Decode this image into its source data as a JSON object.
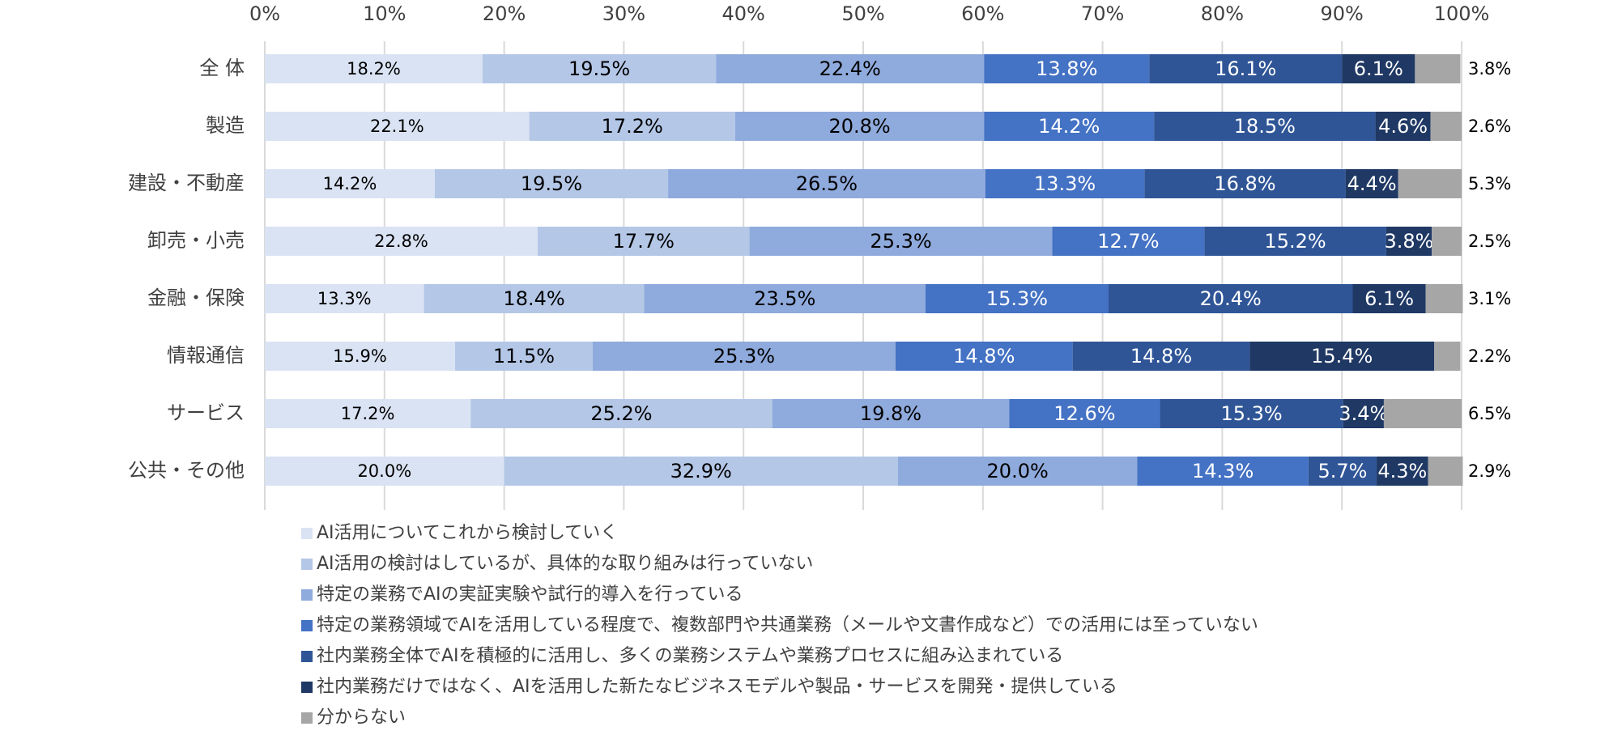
{
  "chart_data": {
    "type": "stacked-bar-horizontal",
    "categories": [
      "全 体",
      "製造",
      "建設・不動産",
      "卸売・小売",
      "金融・保険",
      "情報通信",
      "サービス",
      "公共・その他"
    ],
    "series": [
      {
        "name": "AI活用についてこれから検討していく",
        "color": "#dae3f3",
        "label_color": "#000000",
        "values": [
          18.2,
          22.1,
          14.2,
          22.8,
          13.3,
          15.9,
          17.2,
          20.0
        ],
        "value_labels": [
          "18.2%",
          "22.1%",
          "14.2%",
          "22.8%",
          "13.3%",
          "15.9%",
          "17.2%",
          "20.0%"
        ]
      },
      {
        "name": "AI活用の検討はしているが、具体的な取り組みは行っていない",
        "color": "#b4c7e7",
        "label_color": "#000000",
        "values": [
          19.5,
          17.2,
          19.5,
          17.7,
          18.4,
          11.5,
          25.2,
          32.9
        ],
        "value_labels": [
          "19.5%",
          "17.2%",
          "19.5%",
          "17.7%",
          "18.4%",
          "11.5%",
          "25.2%",
          "32.9%"
        ]
      },
      {
        "name": "特定の業務でAIの実証実験や試行的導入を行っている",
        "color": "#8faadc",
        "label_color": "#000000",
        "values": [
          22.4,
          20.8,
          26.5,
          25.3,
          23.5,
          25.3,
          19.8,
          20.0
        ],
        "value_labels": [
          "22.4%",
          "20.8%",
          "26.5%",
          "25.3%",
          "23.5%",
          "25.3%",
          "19.8%",
          "20.0%"
        ]
      },
      {
        "name": "特定の業務領域でAIを活用している程度で、複数部門や共通業務（メールや文書作成など）での活用には至っていない",
        "color": "#4472c4",
        "label_color": "#ffffff",
        "values": [
          13.8,
          14.2,
          13.3,
          12.7,
          15.3,
          14.8,
          12.6,
          14.3
        ],
        "value_labels": [
          "13.8%",
          "14.2%",
          "13.3%",
          "12.7%",
          "15.3%",
          "14.8%",
          "12.6%",
          "14.3%"
        ]
      },
      {
        "name": "社内業務全体でAIを積極的に活用し、多くの業務システムや業務プロセスに組み込まれている",
        "color": "#2f5597",
        "label_color": "#ffffff",
        "values": [
          16.1,
          18.5,
          16.8,
          15.2,
          20.4,
          14.8,
          15.3,
          5.7
        ],
        "value_labels": [
          "16.1%",
          "18.5%",
          "16.8%",
          "15.2%",
          "20.4%",
          "14.8%",
          "15.3%",
          "5.7%"
        ]
      },
      {
        "name": "社内業務だけではなく、AIを活用した新たなビジネスモデルや製品・サービスを開発・提供している",
        "color": "#1f3864",
        "label_color": "#ffffff",
        "values": [
          6.1,
          4.6,
          4.4,
          3.8,
          6.1,
          15.4,
          3.4,
          4.3
        ],
        "value_labels": [
          "6.1%",
          "4.6%",
          "4.4%",
          "3.8%",
          "6.1%",
          "15.4%",
          "3.4%",
          "4.3%"
        ]
      },
      {
        "name": "分からない",
        "color": "#a6a6a6",
        "label_color": "#000000",
        "label_outside": true,
        "values": [
          3.8,
          2.6,
          5.3,
          2.5,
          3.1,
          2.2,
          6.5,
          2.9
        ],
        "value_labels": [
          "3.8%",
          "2.6%",
          "5.3%",
          "2.5%",
          "3.1%",
          "2.2%",
          "6.5%",
          "2.9%"
        ]
      }
    ],
    "xlim": [
      0,
      100
    ],
    "xticks": [
      {
        "value": 0,
        "label": "0%"
      },
      {
        "value": 10,
        "label": "10%"
      },
      {
        "value": 20,
        "label": "20%"
      },
      {
        "value": 30,
        "label": "30%"
      },
      {
        "value": 40,
        "label": "40%"
      },
      {
        "value": 50,
        "label": "50%"
      },
      {
        "value": 60,
        "label": "60%"
      },
      {
        "value": 70,
        "label": "70%"
      },
      {
        "value": 80,
        "label": "80%"
      },
      {
        "value": 90,
        "label": "90%"
      },
      {
        "value": 100,
        "label": "100%"
      }
    ],
    "grid": true,
    "legend": "bottom"
  }
}
